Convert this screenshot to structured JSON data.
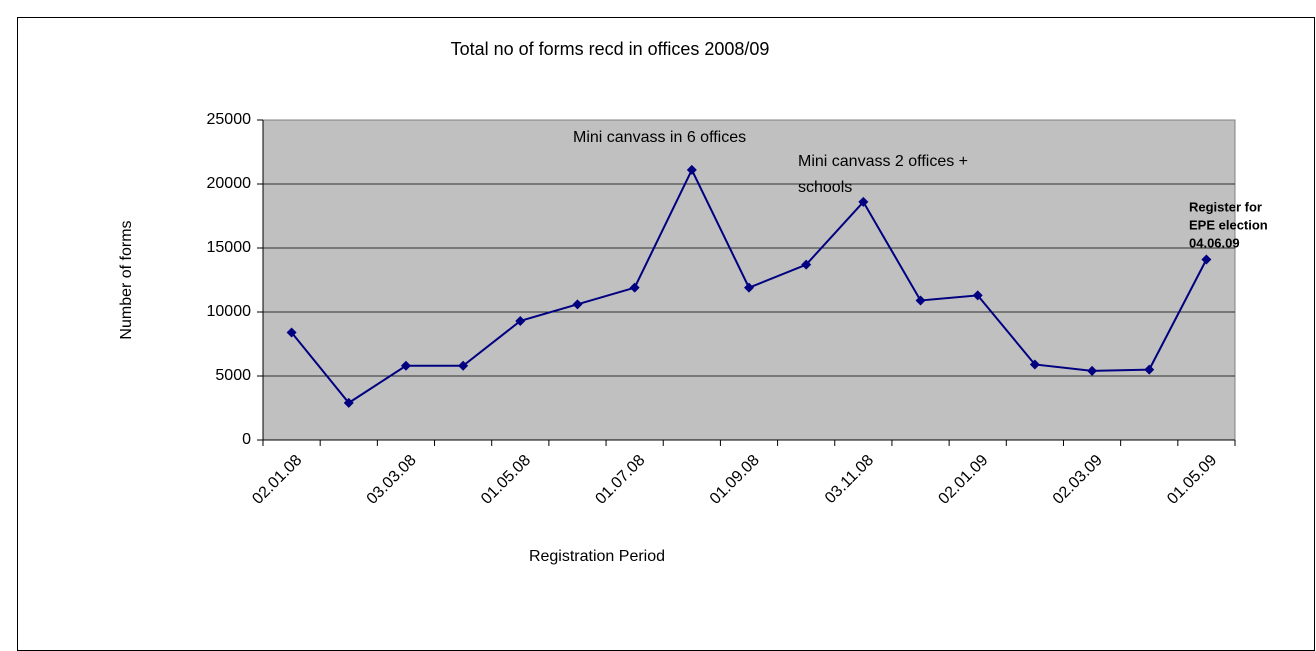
{
  "chart_data": {
    "type": "line",
    "title": "Total no of forms recd in offices 2008/09",
    "x_label": "Registration Period",
    "y_label": "Number of forms",
    "categories": [
      "02.01.08",
      null,
      "03.03.08",
      null,
      "01.05.08",
      null,
      "01.07.08",
      null,
      "01.09.08",
      null,
      "03.11.08",
      null,
      "02.01.09",
      null,
      "02.03.09",
      null,
      "01.05.09"
    ],
    "series": [
      {
        "name": "Number of forms",
        "color": "#000080",
        "values": [
          8400,
          2900,
          5800,
          5800,
          9300,
          10600,
          11900,
          21100,
          11900,
          13700,
          18600,
          10900,
          11300,
          5900,
          5400,
          5500,
          14100
        ]
      }
    ],
    "ylim": [
      0,
      25000
    ],
    "yticks": [
      0,
      5000,
      10000,
      15000,
      20000,
      25000
    ],
    "grid": true,
    "annotations": [
      {
        "lines": [
          "Mini canvass in 6 offices"
        ]
      },
      {
        "lines": [
          "Mini canvass 2 offices +",
          "schools"
        ]
      },
      {
        "lines": [
          "Register for",
          "EPE election",
          "04.06.09"
        ]
      }
    ]
  }
}
